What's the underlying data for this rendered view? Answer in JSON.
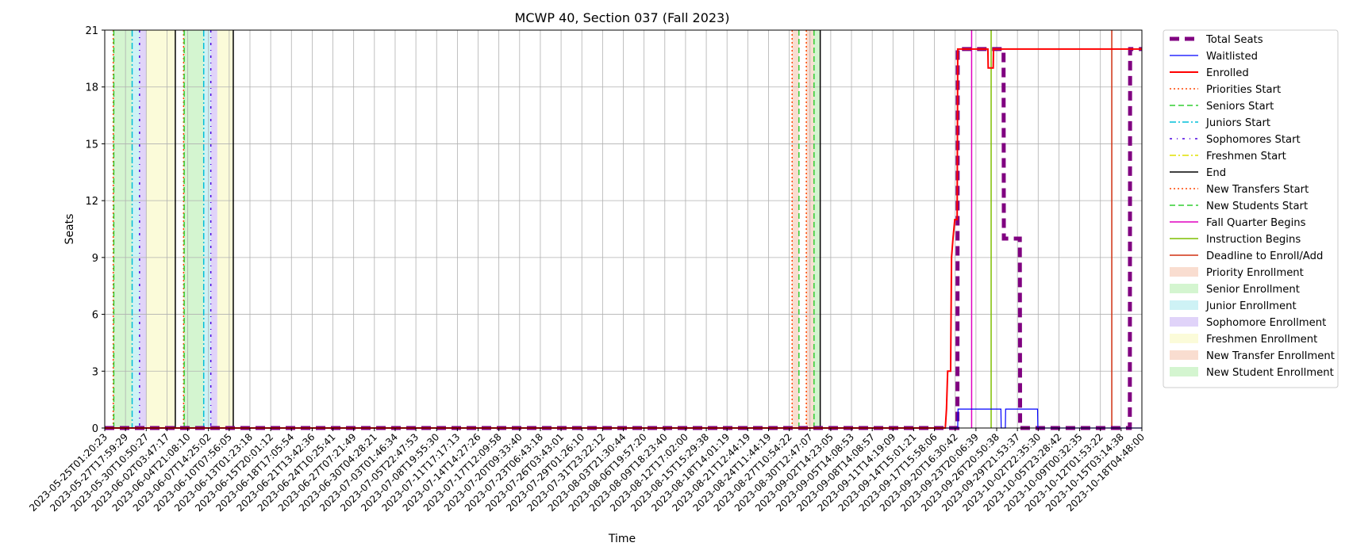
{
  "chart_data": {
    "type": "line",
    "title": "MCWP 40, Section 037 (Fall 2023)",
    "xlabel": "Time",
    "ylabel": "Seats",
    "ylim": [
      0,
      21
    ],
    "yticks": [
      0,
      3,
      6,
      9,
      12,
      15,
      18,
      21
    ],
    "grid": true,
    "legend_position": "outside-right",
    "x_range": [
      "2023-05-25T01:20:23",
      "2023-10-18T04:48:00"
    ],
    "xtick_labels": [
      "2023-05-25T01:20:23",
      "2023-05-27T17:59:29",
      "2023-05-30T10:50:27",
      "2023-06-02T03:47:17",
      "2023-06-04T21:08:10",
      "2023-06-07T14:25:02",
      "2023-06-10T07:56:05",
      "2023-06-13T01:23:18",
      "2023-06-15T20:01:12",
      "2023-06-18T17:05:54",
      "2023-06-21T13:42:36",
      "2023-06-24T10:25:41",
      "2023-06-27T07:21:49",
      "2023-06-30T04:28:21",
      "2023-07-03T01:46:34",
      "2023-07-05T22:47:53",
      "2023-07-08T19:55:30",
      "2023-07-11T17:17:13",
      "2023-07-14T14:27:26",
      "2023-07-17T12:09:58",
      "2023-07-20T09:33:40",
      "2023-07-23T06:43:18",
      "2023-07-26T03:43:01",
      "2023-07-29T01:26:10",
      "2023-07-31T23:22:12",
      "2023-08-03T21:30:44",
      "2023-08-06T19:57:20",
      "2023-08-09T18:23:40",
      "2023-08-12T17:02:00",
      "2023-08-15T15:29:38",
      "2023-08-18T14:01:19",
      "2023-08-21T12:44:19",
      "2023-08-24T11:44:19",
      "2023-08-27T10:54:22",
      "2023-08-30T12:47:07",
      "2023-09-02T14:23:05",
      "2023-09-05T14:08:53",
      "2023-09-08T14:08:57",
      "2023-09-11T14:19:09",
      "2023-09-14T15:01:21",
      "2023-09-17T15:58:06",
      "2023-09-20T16:30:42",
      "2023-09-23T20:06:39",
      "2023-09-26T20:50:38",
      "2023-09-29T21:53:37",
      "2023-10-02T22:35:30",
      "2023-10-05T23:28:42",
      "2023-10-09T00:32:35",
      "2023-10-12T01:53:22",
      "2023-10-15T03:14:38",
      "2023-10-18T04:48:00"
    ],
    "series": [
      {
        "name": "Total Seats",
        "color": "#800080",
        "style": "dashed",
        "width": 5,
        "points": [
          [
            "2023-05-25T01:20:23",
            0
          ],
          [
            "2023-09-22T05:00:00",
            0
          ],
          [
            "2023-09-22T06:00:00",
            20
          ],
          [
            "2023-09-28T17:00:00",
            20
          ],
          [
            "2023-09-28T18:00:00",
            10
          ],
          [
            "2023-10-01T00:00:00",
            10
          ],
          [
            "2023-10-01T01:00:00",
            0
          ],
          [
            "2023-10-16T12:00:00",
            0
          ],
          [
            "2023-10-16T13:00:00",
            20
          ],
          [
            "2023-10-18T04:48:00",
            20
          ]
        ]
      },
      {
        "name": "Waitlisted",
        "color": "#0000ff",
        "style": "solid",
        "width": 1.2,
        "points": [
          [
            "2023-09-20T12:00:00",
            0
          ],
          [
            "2023-09-22T06:00:00",
            0
          ],
          [
            "2023-09-22T07:00:00",
            1
          ],
          [
            "2023-09-28T08:00:00",
            1
          ],
          [
            "2023-09-28T09:00:00",
            0
          ],
          [
            "2023-09-28T23:00:00",
            0
          ],
          [
            "2023-09-29T00:00:00",
            1
          ],
          [
            "2023-10-03T12:00:00",
            1
          ],
          [
            "2023-10-03T13:00:00",
            0
          ],
          [
            "2023-10-18T04:48:00",
            0
          ]
        ]
      },
      {
        "name": "Enrolled",
        "color": "#ff0000",
        "style": "solid",
        "width": 2,
        "points": [
          [
            "2023-05-25T01:20:23",
            0
          ],
          [
            "2023-09-20T12:00:00",
            0
          ],
          [
            "2023-09-20T16:00:00",
            1
          ],
          [
            "2023-09-20T20:00:00",
            3
          ],
          [
            "2023-09-21T06:00:00",
            3
          ],
          [
            "2023-09-21T09:00:00",
            9
          ],
          [
            "2023-09-21T14:00:00",
            10
          ],
          [
            "2023-09-21T20:00:00",
            11
          ],
          [
            "2023-09-22T04:00:00",
            11
          ],
          [
            "2023-09-22T06:00:00",
            20
          ],
          [
            "2023-09-26T12:00:00",
            20
          ],
          [
            "2023-09-26T13:00:00",
            19
          ],
          [
            "2023-09-27T06:00:00",
            19
          ],
          [
            "2023-09-27T07:00:00",
            20
          ],
          [
            "2023-10-18T04:48:00",
            20
          ]
        ]
      }
    ],
    "vertical_markers": [
      {
        "name": "Priorities Start",
        "color": "#ff4500",
        "style": "dotted",
        "times": [
          "2023-05-26T06:00:00",
          "2023-06-05T04:00:00",
          "2023-08-29T22:00:00"
        ]
      },
      {
        "name": "Seniors Start",
        "color": "#32cd32",
        "style": "dashed",
        "times": [
          "2023-05-26T08:00:00",
          "2023-06-05T06:00:00",
          "2023-08-30T21:00:00"
        ]
      },
      {
        "name": "Juniors Start",
        "color": "#00bfd8",
        "style": "dashdot",
        "times": [
          "2023-05-28T22:00:00",
          "2023-06-08T00:00:00"
        ]
      },
      {
        "name": "Sophomores Start",
        "color": "#4b00e0",
        "style": "dashdot2",
        "times": [
          "2023-05-29T23:00:00",
          "2023-06-09T00:00:00"
        ]
      },
      {
        "name": "Freshmen Start",
        "color": "#e0e000",
        "style": "dashdot",
        "times": []
      },
      {
        "name": "End",
        "color": "#000000",
        "style": "solid",
        "times": [
          "2023-06-04T00:00:00",
          "2023-06-12T04:00:00",
          "2023-09-02T21:00:00"
        ]
      },
      {
        "name": "New Transfers Start",
        "color": "#ff4500",
        "style": "dotted",
        "times": [
          "2023-08-31T22:00:00"
        ]
      },
      {
        "name": "New Students Start",
        "color": "#32cd32",
        "style": "dashed",
        "times": [
          "2023-09-02T00:00:00"
        ]
      },
      {
        "name": "Fall Quarter Begins",
        "color": "#e000c0",
        "style": "solid",
        "times": [
          "2023-09-24T05:00:00"
        ]
      },
      {
        "name": "Instruction Begins",
        "color": "#7fbf00",
        "style": "solid",
        "times": [
          "2023-09-26T23:00:00"
        ]
      },
      {
        "name": "Deadline to Enroll/Add",
        "color": "#d03010",
        "style": "solid",
        "times": [
          "2023-10-13T23:00:00"
        ]
      }
    ],
    "shaded_regions": [
      {
        "name": "Priority Enrollment",
        "color": "#f5c6b0",
        "spans": [
          [
            "2023-05-26T06:00:00",
            "2023-05-26T08:00:00"
          ],
          [
            "2023-06-05T04:00:00",
            "2023-06-05T06:00:00"
          ],
          [
            "2023-08-29T22:00:00",
            "2023-08-30T21:00:00"
          ]
        ]
      },
      {
        "name": "Senior Enrollment",
        "color": "#b7eeb0",
        "spans": [
          [
            "2023-05-26T08:00:00",
            "2023-05-28T22:00:00"
          ],
          [
            "2023-06-05T06:00:00",
            "2023-06-08T00:00:00"
          ]
        ]
      },
      {
        "name": "Junior Enrollment",
        "color": "#aee9ef",
        "spans": [
          [
            "2023-05-28T22:00:00",
            "2023-05-29T23:00:00"
          ],
          [
            "2023-06-08T00:00:00",
            "2023-06-09T00:00:00"
          ]
        ]
      },
      {
        "name": "Sophomore Enrollment",
        "color": "#cbb5f5",
        "spans": [
          [
            "2023-05-29T23:00:00",
            "2023-05-30T23:00:00"
          ],
          [
            "2023-06-09T00:00:00",
            "2023-06-09T22:00:00"
          ]
        ]
      },
      {
        "name": "Freshmen Enrollment",
        "color": "#f9f9c0",
        "spans": [
          [
            "2023-05-30T23:00:00",
            "2023-06-04T00:00:00"
          ],
          [
            "2023-06-09T22:00:00",
            "2023-06-12T04:00:00"
          ]
        ]
      },
      {
        "name": "New Transfer Enrollment",
        "color": "#f5c6b0",
        "spans": [
          [
            "2023-08-31T22:00:00",
            "2023-09-02T00:00:00"
          ]
        ]
      },
      {
        "name": "New Student Enrollment",
        "color": "#b7eeb0",
        "spans": [
          [
            "2023-09-02T00:00:00",
            "2023-09-02T21:00:00"
          ]
        ]
      }
    ]
  }
}
